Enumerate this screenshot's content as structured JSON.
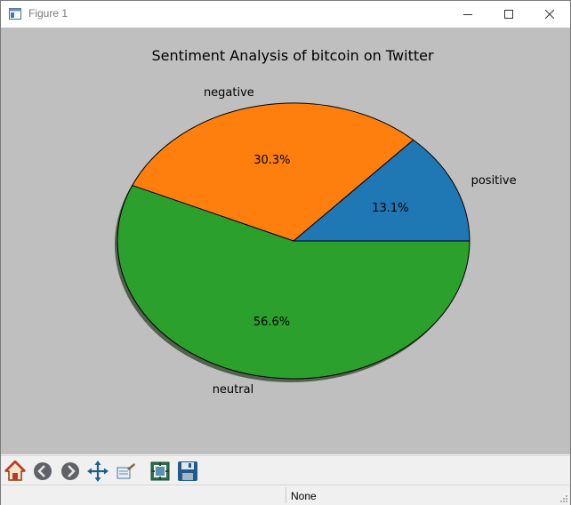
{
  "window": {
    "title": "Figure 1",
    "controls": [
      "minimize-icon",
      "maximize-icon",
      "close-icon"
    ]
  },
  "toolbar": {
    "buttons": [
      {
        "name": "home-button",
        "icon": "home-icon"
      },
      {
        "name": "back-button",
        "icon": "back-arrow-icon"
      },
      {
        "name": "forward-button",
        "icon": "forward-arrow-icon"
      },
      {
        "name": "pan-button",
        "icon": "move-icon"
      },
      {
        "name": "zoom-button",
        "icon": "zoom-rect-icon"
      },
      {
        "name": "configure-subplots-button",
        "icon": "subplots-icon"
      },
      {
        "name": "save-button",
        "icon": "save-icon"
      }
    ]
  },
  "status": {
    "message": "None"
  },
  "colors": {
    "positive": "#1f77b4",
    "negative": "#ff7f0e",
    "neutral": "#2ca02c",
    "background": "#bfbfbf",
    "shadow": "#52624e"
  },
  "chart_data": {
    "type": "pie",
    "title": "Sentiment Analysis of bitcoin on Twitter",
    "categories": [
      "positive",
      "negative",
      "neutral"
    ],
    "values": [
      13.1,
      30.3,
      56.6
    ],
    "value_labels": [
      "13.1%",
      "30.3%",
      "56.6%"
    ],
    "colors": [
      "#1f77b4",
      "#ff7f0e",
      "#2ca02c"
    ],
    "shadow": true,
    "start_angle_deg": 0,
    "direction": "counterclockwise"
  }
}
